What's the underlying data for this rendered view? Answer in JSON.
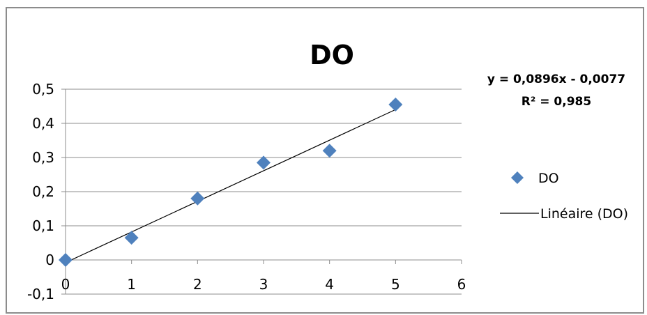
{
  "chart_data": {
    "type": "scatter",
    "title": "DO",
    "xlabel": "",
    "ylabel": "",
    "xlim": [
      0,
      6
    ],
    "ylim": [
      -0.1,
      0.5
    ],
    "x_ticks": [
      "0",
      "1",
      "2",
      "3",
      "4",
      "5",
      "6"
    ],
    "y_ticks": [
      "-0,1",
      "0",
      "0,1",
      "0,2",
      "0,3",
      "0,4",
      "0,5"
    ],
    "grid": "horizontal",
    "series": [
      {
        "name": "DO",
        "marker": "diamond",
        "color": "#4f81bd",
        "x": [
          0,
          1,
          2,
          3,
          4,
          5
        ],
        "y": [
          0.0,
          0.065,
          0.18,
          0.285,
          0.32,
          0.455
        ]
      }
    ],
    "trendline": {
      "name": "Linéaire (DO)",
      "slope": 0.0896,
      "intercept": -0.0077,
      "x_range": [
        0,
        5
      ],
      "color": "#000000",
      "equation": "y = 0,0896x - 0,0077",
      "r_squared": "R² = 0,985"
    },
    "legend": {
      "placement": "right",
      "entries": [
        "DO",
        "Linéaire (DO)"
      ]
    }
  }
}
